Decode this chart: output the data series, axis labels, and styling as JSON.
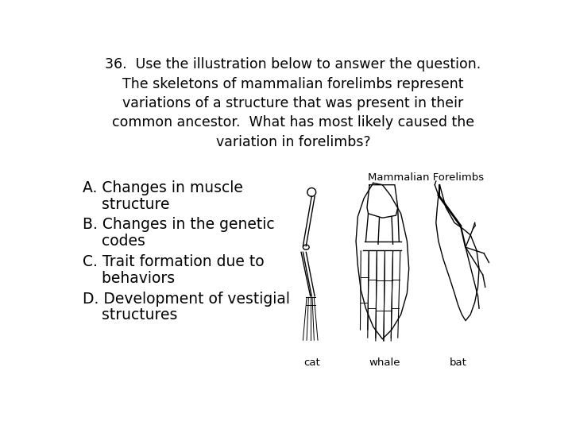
{
  "title_line1": "36.  Use the illustration below to answer the question.",
  "title_line2": "The skeletons of mammalian forelimbs represent",
  "title_line3": "variations of a structure that was present in their",
  "title_line4": "common ancestor.  What has most likely caused the",
  "title_line5": "variation in forelimbs?",
  "answer_A1": "A. Changes in muscle",
  "answer_A2": "    structure",
  "answer_B1": "B. Changes in the genetic",
  "answer_B2": "    codes",
  "answer_C1": "C. Trait formation due to",
  "answer_C2": "    behaviors",
  "answer_D1": "D. Development of vestigial",
  "answer_D2": "    structures",
  "image_label": "Mammalian Forelimbs",
  "label_cat": "cat",
  "label_whale": "whale",
  "label_bat": "bat",
  "bg_color": "#ffffff",
  "text_color": "#000000",
  "title_fontsize": 12.5,
  "answer_fontsize": 13.5,
  "label_fontsize": 9.5
}
